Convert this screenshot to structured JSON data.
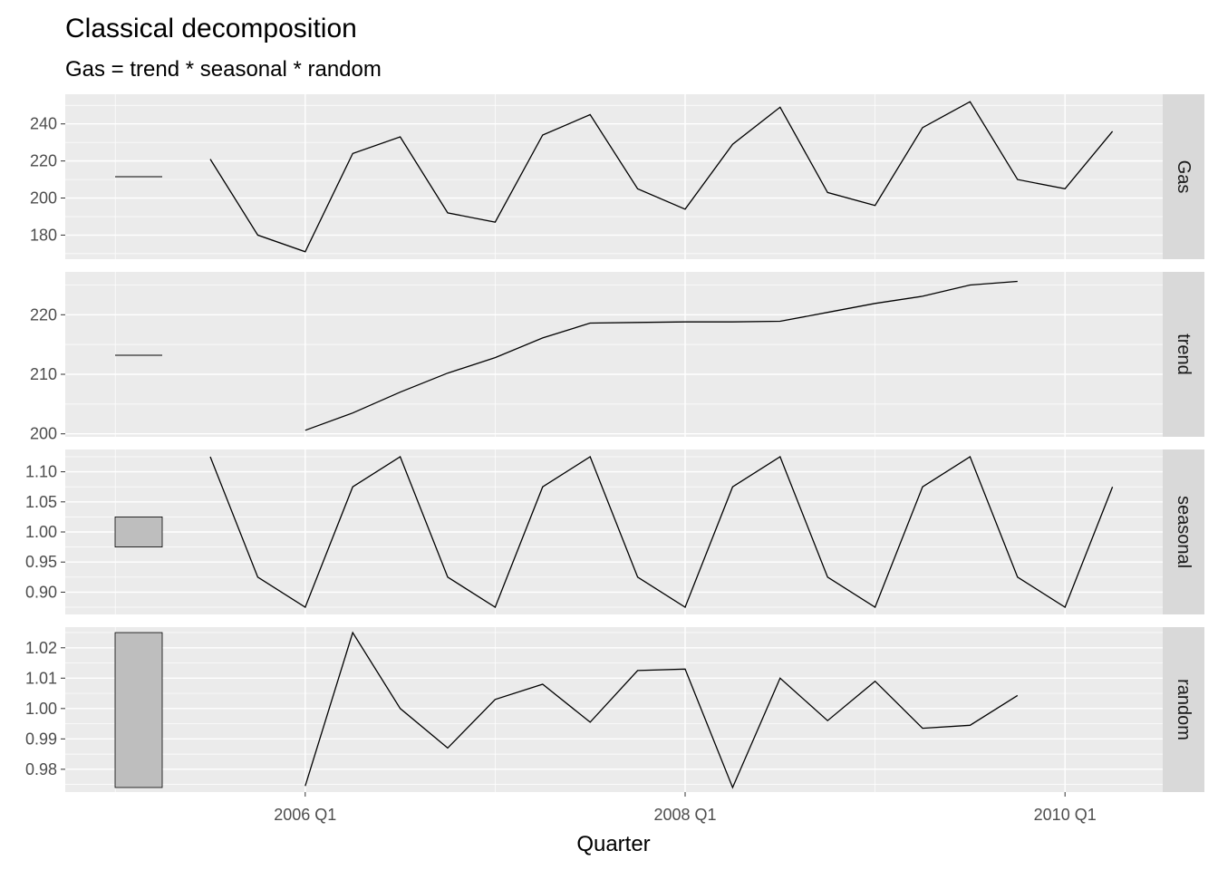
{
  "chart_data": {
    "type": "line",
    "title": "Classical decomposition",
    "subtitle": "Gas = trend * seasonal * random",
    "xlabel": "Quarter",
    "x": [
      "2005 Q3",
      "2005 Q4",
      "2006 Q1",
      "2006 Q2",
      "2006 Q3",
      "2006 Q4",
      "2007 Q1",
      "2007 Q2",
      "2007 Q3",
      "2007 Q4",
      "2008 Q1",
      "2008 Q2",
      "2008 Q3",
      "2008 Q4",
      "2009 Q1",
      "2009 Q2",
      "2009 Q3",
      "2009 Q4",
      "2010 Q1",
      "2010 Q2"
    ],
    "x_ticks": [
      "2006 Q1",
      "2008 Q1",
      "2010 Q1"
    ],
    "grid": true,
    "panels": [
      {
        "name": "Gas",
        "values": [
          221,
          180,
          171,
          224,
          233,
          192,
          187,
          234,
          245,
          205,
          194,
          229,
          249,
          203,
          196,
          238,
          252,
          210,
          205,
          236
        ],
        "ylim": [
          167,
          256
        ],
        "yticks": [
          "180",
          "200",
          "220",
          "240"
        ],
        "range_bar": [
          211.5,
          211.5
        ]
      },
      {
        "name": "trend",
        "values": [
          null,
          null,
          200.6,
          203.5,
          207.0,
          210.2,
          212.8,
          216.1,
          218.6,
          218.7,
          218.8,
          218.8,
          218.9,
          220.4,
          221.9,
          223.1,
          225.0,
          225.6,
          null,
          null
        ],
        "ylim": [
          199.5,
          227.2
        ],
        "yticks": [
          "200",
          "210",
          "220"
        ],
        "range_bar": [
          213.2,
          213.2
        ]
      },
      {
        "name": "seasonal",
        "values": [
          1.125,
          0.925,
          0.875,
          1.075,
          1.125,
          0.925,
          0.875,
          1.075,
          1.125,
          0.925,
          0.875,
          1.075,
          1.125,
          0.925,
          0.875,
          1.075,
          1.125,
          0.925,
          0.875,
          1.075
        ],
        "ylim": [
          0.863,
          1.137
        ],
        "yticks": [
          "0.90",
          "0.95",
          "1.00",
          "1.05",
          "1.10"
        ],
        "range_bar": [
          0.975,
          1.025
        ]
      },
      {
        "name": "random",
        "values": [
          null,
          null,
          0.9745,
          1.025,
          1.0,
          0.987,
          1.003,
          1.008,
          0.9955,
          1.0125,
          1.013,
          0.974,
          1.01,
          0.996,
          1.009,
          0.9935,
          0.9945,
          1.0043,
          null,
          null
        ],
        "ylim": [
          0.9725,
          1.0268
        ],
        "yticks": [
          "0.98",
          "0.99",
          "1.00",
          "1.01",
          "1.02"
        ],
        "range_bar": [
          0.974,
          1.025
        ]
      }
    ]
  },
  "colors": {
    "panel_bg": "#ebebeb",
    "grid_major": "#ffffff",
    "strip_bg": "#d9d9d9",
    "line": "#000000",
    "range_bar_fill": "#bebebe",
    "tick_text": "#4d4d4d"
  }
}
